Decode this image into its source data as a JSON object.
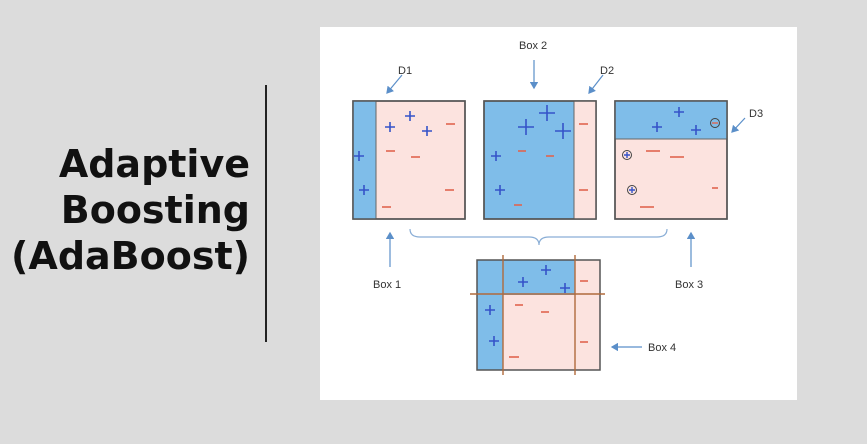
{
  "title": {
    "line1": "Adaptive",
    "line2": "Boosting",
    "line3": "(AdaBoost)"
  },
  "diagram": {
    "labels": {
      "d1": "D1",
      "d2": "D2",
      "d3": "D3",
      "box1": "Box 1",
      "box2": "Box 2",
      "box3": "Box 3",
      "box4": "Box 4"
    },
    "colors": {
      "positive_region": "#7fbde9",
      "negative_region": "#fce3df",
      "plus_sign": "#3553c9",
      "minus_sign": "#e0654f",
      "border": "#555555",
      "arrow": "#5b8fc9"
    }
  }
}
